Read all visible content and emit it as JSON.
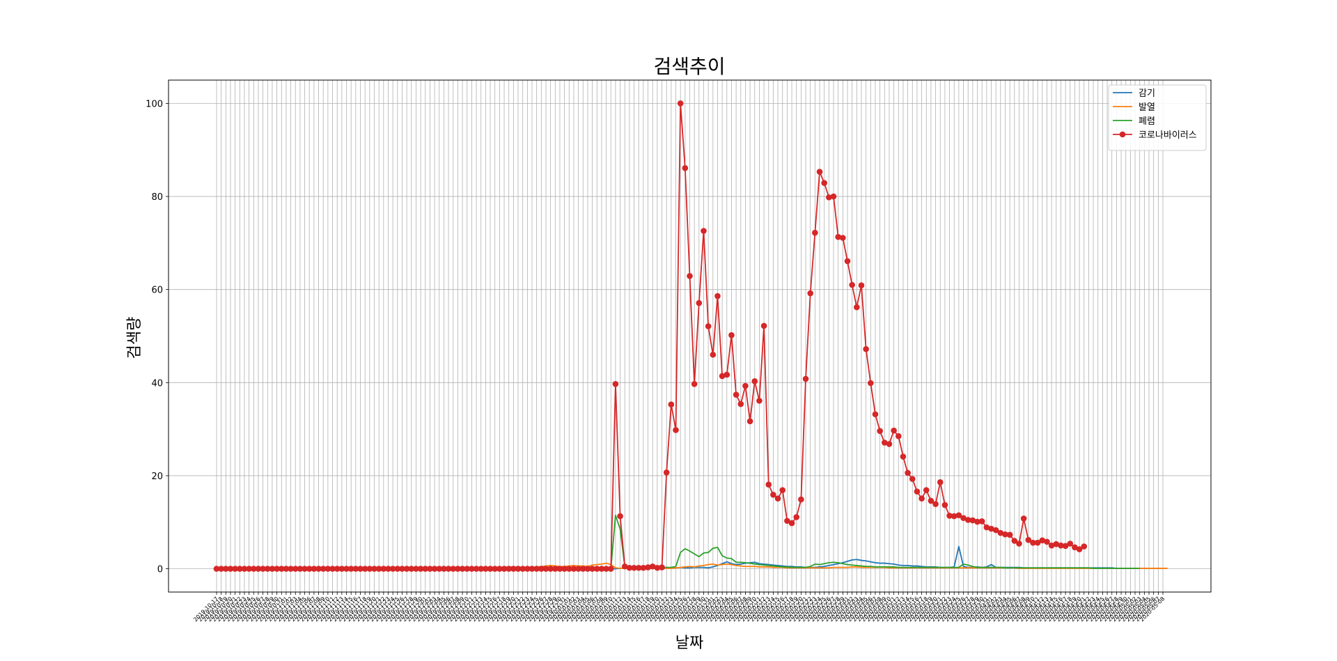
{
  "chart_data": {
    "type": "line",
    "title": "검색추이",
    "xlabel": "날짜",
    "ylabel": "검색량",
    "ylim": [
      -5,
      105
    ],
    "yticks": [
      0,
      20,
      40,
      60,
      80,
      100
    ],
    "grid": true,
    "legend_position": "top-right",
    "x_start_date": "2019-10-17",
    "x_step_days": 1,
    "series": [
      {
        "name": "감기",
        "color": "#1f77b4",
        "marker": "none",
        "values": [
          0,
          0,
          0,
          0,
          0,
          0,
          0,
          0,
          0,
          0,
          0,
          0,
          0,
          0,
          0,
          0,
          0,
          0,
          0,
          0,
          0,
          0,
          0,
          0,
          0,
          0,
          0,
          0,
          0,
          0,
          0,
          0,
          0,
          0,
          0,
          0,
          0,
          0,
          0,
          0,
          0,
          0,
          0,
          0,
          0,
          0,
          0,
          0,
          0,
          0,
          0,
          0,
          0,
          0,
          0,
          0,
          0,
          0,
          0,
          0,
          0,
          0,
          0,
          0,
          0,
          0,
          0,
          0,
          0,
          0,
          0,
          0,
          0,
          0,
          0,
          0,
          0,
          0,
          0,
          0,
          0,
          0,
          0,
          0,
          0,
          0,
          0,
          0.1,
          0.2,
          0.5,
          0.3,
          0.2,
          0.3,
          0.4,
          0.3,
          0.3,
          0.2,
          0.3,
          0.2,
          0.2,
          0.3,
          0.2,
          0.2,
          0.3,
          0.3,
          0.3,
          0.2,
          0.4,
          0.7,
          1.1,
          1.5,
          1.1,
          0.9,
          1.0,
          1.2,
          1.3,
          1.4,
          1.1,
          1.0,
          0.9,
          0.8,
          0.7,
          0.6,
          0.5,
          0.5,
          0.4,
          0.4,
          0.3,
          0.3,
          0.3,
          0.4,
          0.5,
          0.7,
          0.9,
          1.1,
          1.3,
          1.6,
          1.9,
          2.0,
          1.8,
          1.7,
          1.5,
          1.3,
          1.2,
          1.2,
          1.1,
          1.0,
          0.8,
          0.7,
          0.7,
          0.6,
          0.6,
          0.5,
          0.4,
          0.4,
          0.4,
          0.3,
          0.3,
          0.3,
          0.4,
          4.8,
          0.5,
          0.3,
          0.3,
          0.4,
          0.3,
          0.4,
          0.9,
          0.3,
          0.3,
          0.3,
          0.3,
          0.3,
          0.3,
          0.2,
          0.2,
          0.2,
          0.2,
          0.2,
          0.2,
          0.2,
          0.2,
          0.2,
          0.2,
          0.2,
          0.2,
          0.2,
          0.2,
          0.2,
          0.2,
          0.2,
          0.2,
          0.2,
          0.2,
          0.1,
          0.1,
          0.1,
          0.1,
          0.1,
          0.1,
          0.1,
          0.1,
          0.1,
          0.1,
          0.1
        ]
      },
      {
        "name": "발열",
        "color": "#ff7f0e",
        "marker": "none",
        "values": [
          0,
          0,
          0,
          0,
          0,
          0,
          0,
          0,
          0,
          0,
          0,
          0,
          0,
          0,
          0,
          0,
          0,
          0,
          0,
          0,
          0,
          0,
          0,
          0,
          0,
          0,
          0,
          0,
          0,
          0,
          0,
          0,
          0,
          0,
          0,
          0,
          0,
          0,
          0,
          0,
          0,
          0,
          0,
          0,
          0,
          0,
          0,
          0,
          0,
          0,
          0,
          0,
          0,
          0,
          0,
          0,
          0,
          0,
          0,
          0,
          0.1,
          0.2,
          0.3,
          0.4,
          0.4,
          0.3,
          0.3,
          0.3,
          0.3,
          0.4,
          0.5,
          0.6,
          0.7,
          0.6,
          0.5,
          0.5,
          0.6,
          0.7,
          0.6,
          0.6,
          0.5,
          0.8,
          0.9,
          1.0,
          1.2,
          0.9,
          0.2,
          0.1,
          0.1,
          0.1,
          0.1,
          0.1,
          0.1,
          0.1,
          0.1,
          0.1,
          0.1,
          0.1,
          0.1,
          0.2,
          0.3,
          0.4,
          0.5,
          0.4,
          0.6,
          0.7,
          0.9,
          1.0,
          0.8,
          0.9,
          1.0,
          0.9,
          0.7,
          0.6,
          0.5,
          0.5,
          0.5,
          0.4,
          0.4,
          0.4,
          0.3,
          0.3,
          0.3,
          0.2,
          0.2,
          0.2,
          0.2,
          0.2,
          0.2,
          0.2,
          0.2,
          0.2,
          0.2,
          0.3,
          0.3,
          0.3,
          0.3,
          0.4,
          0.4,
          0.3,
          0.3,
          0.3,
          0.3,
          0.3,
          0.3,
          0.2,
          0.2,
          0.2,
          0.2,
          0.2,
          0.2,
          0.2,
          0.2,
          0.2,
          0.2,
          0.2,
          0.2,
          0.2,
          0.2,
          0.2,
          0.2,
          0.2,
          0.2,
          0.2,
          0.2,
          0.2,
          0.2,
          0.2,
          0.2,
          0.2,
          0.2,
          0.2,
          0.2,
          0.1,
          0.1,
          0.1,
          0.1,
          0.1,
          0.1,
          0.1,
          0.1,
          0.1,
          0.1,
          0.1,
          0.1,
          0.1,
          0.1,
          0.1,
          0.1,
          0.1,
          0.1,
          0.1,
          0.1,
          0.1,
          0.1,
          0.1,
          0.1,
          0.1,
          0.1,
          0.1,
          0.1,
          0.1,
          0.1,
          0.1,
          0.1,
          0.1
        ]
      },
      {
        "name": "폐렴",
        "color": "#2ca02c",
        "marker": "none",
        "values": [
          0,
          0,
          0,
          0,
          0,
          0,
          0,
          0,
          0,
          0,
          0,
          0,
          0,
          0,
          0,
          0,
          0,
          0,
          0,
          0,
          0,
          0,
          0,
          0,
          0,
          0,
          0,
          0,
          0,
          0,
          0,
          0,
          0,
          0,
          0,
          0,
          0,
          0,
          0,
          0,
          0,
          0,
          0,
          0,
          0,
          0,
          0,
          0,
          0,
          0,
          0,
          0,
          0,
          0,
          0,
          0,
          0,
          0,
          0,
          0,
          0,
          0,
          0,
          0,
          0,
          0,
          0,
          0,
          0,
          0,
          0,
          0,
          0,
          0,
          0,
          0,
          0,
          0,
          0,
          0,
          0,
          0,
          0,
          0,
          0,
          0,
          11.5,
          8.5,
          0.5,
          0.3,
          0.3,
          0.3,
          0.3,
          0.3,
          0.3,
          0.3,
          0.3,
          0.3,
          0.3,
          0.5,
          3.5,
          4.3,
          3.8,
          3.2,
          2.6,
          3.4,
          3.5,
          4.4,
          4.6,
          2.8,
          2.3,
          2.2,
          1.4,
          1.4,
          1.3,
          1.2,
          1.0,
          0.9,
          0.8,
          0.7,
          0.6,
          0.5,
          0.4,
          0.4,
          0.3,
          0.3,
          0.3,
          0.3,
          0.5,
          1.0,
          0.9,
          1.1,
          1.3,
          1.4,
          1.3,
          1.1,
          0.9,
          0.8,
          0.7,
          0.6,
          0.5,
          0.5,
          0.4,
          0.4,
          0.4,
          0.4,
          0.4,
          0.3,
          0.3,
          0.3,
          0.3,
          0.3,
          0.3,
          0.3,
          0.3,
          0.3,
          0.3,
          0.3,
          0.3,
          0.3,
          0.3,
          1.0,
          0.8,
          0.5,
          0.3,
          0.3,
          0.3,
          0.3,
          0.3,
          0.3,
          0.2,
          0.2,
          0.2,
          0.2,
          0.2,
          0.2,
          0.2,
          0.2,
          0.2,
          0.2,
          0.2,
          0.2,
          0.2,
          0.2,
          0.2,
          0.2,
          0.2,
          0.2,
          0.2,
          0.1,
          0.1,
          0.1,
          0.1,
          0.1,
          0.1,
          0.1,
          0.1,
          0.1,
          0.1,
          0.1
        ]
      },
      {
        "name": "코로나바이러스",
        "color": "#d62728",
        "marker": "circle",
        "values": [
          0,
          0,
          0,
          0,
          0,
          0,
          0,
          0,
          0,
          0,
          0,
          0,
          0,
          0,
          0,
          0,
          0,
          0,
          0,
          0,
          0,
          0,
          0,
          0,
          0,
          0,
          0,
          0,
          0,
          0,
          0,
          0,
          0,
          0,
          0,
          0,
          0,
          0,
          0,
          0,
          0,
          0,
          0,
          0,
          0,
          0,
          0,
          0,
          0,
          0,
          0,
          0,
          0,
          0,
          0,
          0,
          0,
          0,
          0,
          0,
          0,
          0,
          0,
          0,
          0,
          0,
          0,
          0,
          0,
          0,
          0,
          0,
          0,
          0,
          0,
          0,
          0,
          0,
          0,
          0,
          0,
          0,
          0,
          0,
          0,
          0,
          39.7,
          11.3,
          0.5,
          0.2,
          0.2,
          0.2,
          0.2,
          0.3,
          0.5,
          0.2,
          0.3,
          20.7,
          35.3,
          29.8,
          100,
          86.1,
          62.9,
          39.7,
          57.1,
          72.6,
          52.1,
          46.0,
          58.6,
          41.4,
          41.7,
          50.2,
          37.4,
          35.4,
          39.3,
          31.7,
          40.3,
          36.1,
          52.2,
          18.1,
          15.9,
          15.1,
          16.9,
          10.3,
          9.8,
          11.1,
          14.9,
          40.8,
          59.2,
          72.2,
          85.3,
          82.9,
          79.8,
          80.0,
          71.3,
          71.1,
          66.1,
          61.0,
          56.2,
          60.9,
          47.2,
          39.9,
          33.2,
          29.6,
          27.1,
          26.8,
          29.7,
          28.5,
          24.1,
          20.6,
          19.3,
          16.6,
          15.1,
          16.9,
          14.6,
          13.9,
          18.6,
          13.7,
          11.4,
          11.3,
          11.5,
          10.9,
          10.5,
          10.4,
          10.1,
          10.2,
          8.9,
          8.6,
          8.3,
          7.7,
          7.4,
          7.3,
          6.0,
          5.4,
          10.8,
          6.2,
          5.6,
          5.6,
          6.1,
          5.8,
          5.0,
          5.3,
          5.0,
          4.9,
          5.4,
          4.6,
          4.2,
          4.8
        ]
      }
    ]
  }
}
